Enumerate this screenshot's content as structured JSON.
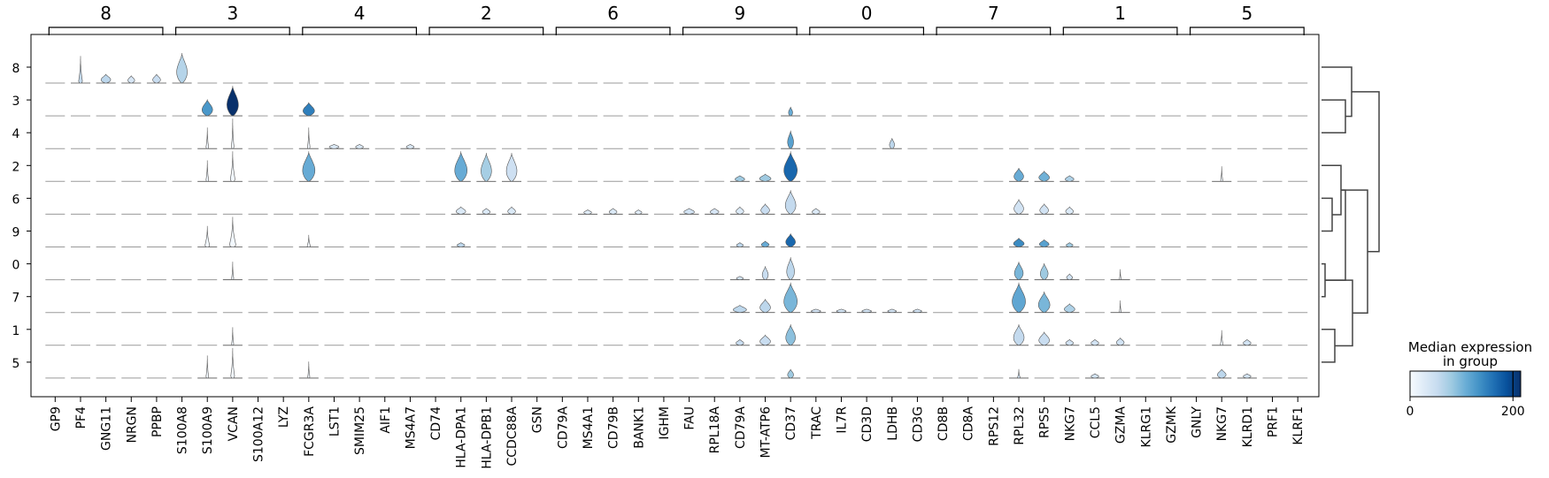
{
  "chart_data": {
    "type": "stacked-violin",
    "groups": [
      {
        "label": "8",
        "genes": [
          "GP9",
          "PF4",
          "GNG11",
          "NRGN",
          "PPBP"
        ]
      },
      {
        "label": "3",
        "genes": [
          "S100A8",
          "S100A9",
          "VCAN",
          "S100A12",
          "LYZ"
        ]
      },
      {
        "label": "4",
        "genes": [
          "FCGR3A",
          "LST1",
          "SMIM25",
          "AIF1",
          "MS4A7"
        ]
      },
      {
        "label": "2",
        "genes": [
          "CD74",
          "HLA-DPA1",
          "HLA-DPB1",
          "CCDC88A",
          "GSN"
        ]
      },
      {
        "label": "6",
        "genes": [
          "CD79A",
          "MS4A1",
          "CD79B",
          "BANK1",
          "IGHM"
        ]
      },
      {
        "label": "9",
        "genes": [
          "FAU",
          "RPL18A",
          "CD79A",
          "MT-ATP6",
          "CD37"
        ]
      },
      {
        "label": "0",
        "genes": [
          "TRAC",
          "IL7R",
          "CD3D",
          "LDHB",
          "CD3G"
        ]
      },
      {
        "label": "7",
        "genes": [
          "CD8B",
          "CD8A",
          "RPS12",
          "RPL32",
          "RPS5"
        ]
      },
      {
        "label": "1",
        "genes": [
          "NKG7",
          "CCL5",
          "GZMA",
          "KLRG1",
          "GZMK"
        ]
      },
      {
        "label": "5",
        "genes": [
          "GNLY",
          "NKG7",
          "KLRD1",
          "PRF1",
          "KLRF1"
        ]
      }
    ],
    "rows": [
      "8",
      "3",
      "4",
      "2",
      "6",
      "9",
      "0",
      "7",
      "1",
      "5"
    ],
    "violins": [
      {
        "row": "8",
        "gene": 1,
        "shape": "spike",
        "height": 0.9,
        "width": 0.18,
        "median": 55
      },
      {
        "row": "8",
        "gene": 2,
        "shape": "blob",
        "height": 0.3,
        "width": 0.5,
        "median": 60
      },
      {
        "row": "8",
        "gene": 3,
        "shape": "blob",
        "height": 0.25,
        "width": 0.35,
        "median": 35
      },
      {
        "row": "8",
        "gene": 4,
        "shape": "blob",
        "height": 0.3,
        "width": 0.4,
        "median": 50
      },
      {
        "row": "8",
        "gene": 5,
        "shape": "blob",
        "height": 1.0,
        "width": 0.55,
        "median": 65
      },
      {
        "row": "3",
        "gene": 6,
        "shape": "blob",
        "height": 0.55,
        "width": 0.55,
        "median": 130
      },
      {
        "row": "3",
        "gene": 7,
        "shape": "blob",
        "height": 1.0,
        "width": 0.6,
        "median": 215
      },
      {
        "row": "3",
        "gene": 10,
        "shape": "blob",
        "height": 0.45,
        "width": 0.6,
        "median": 150
      },
      {
        "row": "3",
        "gene": 29,
        "shape": "blob",
        "height": 0.3,
        "width": 0.2,
        "median": 110
      },
      {
        "row": "4",
        "gene": 6,
        "shape": "spike",
        "height": 0.7,
        "width": 0.12,
        "median": 5
      },
      {
        "row": "4",
        "gene": 7,
        "shape": "spike",
        "height": 1.0,
        "width": 0.12,
        "median": 5
      },
      {
        "row": "4",
        "gene": 10,
        "shape": "spike",
        "height": 0.7,
        "width": 0.12,
        "median": 5
      },
      {
        "row": "4",
        "gene": 11,
        "shape": "blob",
        "height": 0.15,
        "width": 0.5,
        "median": 30
      },
      {
        "row": "4",
        "gene": 12,
        "shape": "blob",
        "height": 0.15,
        "width": 0.4,
        "median": 30
      },
      {
        "row": "4",
        "gene": 14,
        "shape": "blob",
        "height": 0.15,
        "width": 0.4,
        "median": 30
      },
      {
        "row": "4",
        "gene": 29,
        "shape": "blob",
        "height": 0.6,
        "width": 0.3,
        "median": 120
      },
      {
        "row": "4",
        "gene": 33,
        "shape": "blob",
        "height": 0.35,
        "width": 0.25,
        "median": 60
      },
      {
        "row": "2",
        "gene": 6,
        "shape": "spike",
        "height": 0.7,
        "width": 0.12,
        "median": 5
      },
      {
        "row": "2",
        "gene": 7,
        "shape": "spike",
        "height": 1.0,
        "width": 0.22,
        "median": 5
      },
      {
        "row": "2",
        "gene": 10,
        "shape": "blob",
        "height": 1.0,
        "width": 0.65,
        "median": 110
      },
      {
        "row": "2",
        "gene": 16,
        "shape": "blob",
        "height": 1.0,
        "width": 0.65,
        "median": 110
      },
      {
        "row": "2",
        "gene": 17,
        "shape": "blob",
        "height": 0.95,
        "width": 0.55,
        "median": 75
      },
      {
        "row": "2",
        "gene": 18,
        "shape": "blob",
        "height": 0.95,
        "width": 0.55,
        "median": 45
      },
      {
        "row": "2",
        "gene": 27,
        "shape": "blob",
        "height": 0.2,
        "width": 0.5,
        "median": 80
      },
      {
        "row": "2",
        "gene": 28,
        "shape": "blob",
        "height": 0.25,
        "width": 0.6,
        "median": 80
      },
      {
        "row": "2",
        "gene": 29,
        "shape": "blob",
        "height": 1.0,
        "width": 0.7,
        "median": 170
      },
      {
        "row": "2",
        "gene": 38,
        "shape": "blob",
        "height": 0.45,
        "width": 0.5,
        "median": 110
      },
      {
        "row": "2",
        "gene": 39,
        "shape": "blob",
        "height": 0.35,
        "width": 0.55,
        "median": 105
      },
      {
        "row": "2",
        "gene": 40,
        "shape": "blob",
        "height": 0.2,
        "width": 0.45,
        "median": 70
      },
      {
        "row": "2",
        "gene": 46,
        "shape": "spike",
        "height": 0.5,
        "width": 0.1,
        "median": 5
      },
      {
        "row": "6",
        "gene": 16,
        "shape": "blob",
        "height": 0.25,
        "width": 0.5,
        "median": 30
      },
      {
        "row": "6",
        "gene": 17,
        "shape": "blob",
        "height": 0.2,
        "width": 0.4,
        "median": 30
      },
      {
        "row": "6",
        "gene": 18,
        "shape": "blob",
        "height": 0.25,
        "width": 0.4,
        "median": 30
      },
      {
        "row": "6",
        "gene": 21,
        "shape": "blob",
        "height": 0.15,
        "width": 0.4,
        "median": 25
      },
      {
        "row": "6",
        "gene": 22,
        "shape": "blob",
        "height": 0.2,
        "width": 0.4,
        "median": 30
      },
      {
        "row": "6",
        "gene": 23,
        "shape": "blob",
        "height": 0.15,
        "width": 0.35,
        "median": 25
      },
      {
        "row": "6",
        "gene": 25,
        "shape": "blob",
        "height": 0.2,
        "width": 0.55,
        "median": 40
      },
      {
        "row": "6",
        "gene": 26,
        "shape": "blob",
        "height": 0.2,
        "width": 0.45,
        "median": 35
      },
      {
        "row": "6",
        "gene": 27,
        "shape": "blob",
        "height": 0.25,
        "width": 0.4,
        "median": 30
      },
      {
        "row": "6",
        "gene": 28,
        "shape": "blob",
        "height": 0.35,
        "width": 0.45,
        "median": 50
      },
      {
        "row": "6",
        "gene": 29,
        "shape": "blob",
        "height": 0.8,
        "width": 0.55,
        "median": 55
      },
      {
        "row": "6",
        "gene": 30,
        "shape": "blob",
        "height": 0.2,
        "width": 0.4,
        "median": 30
      },
      {
        "row": "6",
        "gene": 38,
        "shape": "blob",
        "height": 0.5,
        "width": 0.5,
        "median": 40
      },
      {
        "row": "6",
        "gene": 39,
        "shape": "blob",
        "height": 0.35,
        "width": 0.45,
        "median": 40
      },
      {
        "row": "6",
        "gene": 40,
        "shape": "blob",
        "height": 0.25,
        "width": 0.4,
        "median": 30
      },
      {
        "row": "9",
        "gene": 6,
        "shape": "spike",
        "height": 0.7,
        "width": 0.22,
        "median": 5
      },
      {
        "row": "9",
        "gene": 7,
        "shape": "spike",
        "height": 1.0,
        "width": 0.3,
        "median": 5
      },
      {
        "row": "9",
        "gene": 10,
        "shape": "spike",
        "height": 0.4,
        "width": 0.15,
        "median": 5
      },
      {
        "row": "9",
        "gene": 16,
        "shape": "blob",
        "height": 0.15,
        "width": 0.4,
        "median": 60
      },
      {
        "row": "9",
        "gene": 27,
        "shape": "blob",
        "height": 0.15,
        "width": 0.35,
        "median": 60
      },
      {
        "row": "9",
        "gene": 28,
        "shape": "blob",
        "height": 0.2,
        "width": 0.4,
        "median": 110
      },
      {
        "row": "9",
        "gene": 29,
        "shape": "blob",
        "height": 0.45,
        "width": 0.5,
        "median": 170
      },
      {
        "row": "9",
        "gene": 38,
        "shape": "blob",
        "height": 0.3,
        "width": 0.55,
        "median": 140
      },
      {
        "row": "9",
        "gene": 39,
        "shape": "blob",
        "height": 0.25,
        "width": 0.5,
        "median": 120
      },
      {
        "row": "9",
        "gene": 40,
        "shape": "blob",
        "height": 0.15,
        "width": 0.35,
        "median": 80
      },
      {
        "row": "0",
        "gene": 7,
        "shape": "spike",
        "height": 0.6,
        "width": 0.1,
        "median": 5
      },
      {
        "row": "0",
        "gene": 27,
        "shape": "blob",
        "height": 0.12,
        "width": 0.35,
        "median": 40
      },
      {
        "row": "0",
        "gene": 28,
        "shape": "blob",
        "height": 0.45,
        "width": 0.3,
        "median": 50
      },
      {
        "row": "0",
        "gene": 29,
        "shape": "blob",
        "height": 0.75,
        "width": 0.4,
        "median": 60
      },
      {
        "row": "0",
        "gene": 38,
        "shape": "blob",
        "height": 0.6,
        "width": 0.45,
        "median": 100
      },
      {
        "row": "0",
        "gene": 39,
        "shape": "blob",
        "height": 0.55,
        "width": 0.4,
        "median": 80
      },
      {
        "row": "0",
        "gene": 40,
        "shape": "blob",
        "height": 0.2,
        "width": 0.3,
        "median": 40
      },
      {
        "row": "0",
        "gene": 42,
        "shape": "spike",
        "height": 0.35,
        "width": 0.08,
        "median": 5
      },
      {
        "row": "7",
        "gene": 27,
        "shape": "blob",
        "height": 0.25,
        "width": 0.7,
        "median": 60
      },
      {
        "row": "7",
        "gene": 28,
        "shape": "blob",
        "height": 0.45,
        "width": 0.55,
        "median": 60
      },
      {
        "row": "7",
        "gene": 29,
        "shape": "blob",
        "height": 1.0,
        "width": 0.7,
        "median": 100
      },
      {
        "row": "7",
        "gene": 30,
        "shape": "blob",
        "height": 0.12,
        "width": 0.5,
        "median": 40
      },
      {
        "row": "7",
        "gene": 31,
        "shape": "blob",
        "height": 0.12,
        "width": 0.5,
        "median": 40
      },
      {
        "row": "7",
        "gene": 32,
        "shape": "blob",
        "height": 0.12,
        "width": 0.5,
        "median": 40
      },
      {
        "row": "7",
        "gene": 33,
        "shape": "blob",
        "height": 0.12,
        "width": 0.45,
        "median": 40
      },
      {
        "row": "7",
        "gene": 34,
        "shape": "blob",
        "height": 0.12,
        "width": 0.45,
        "median": 40
      },
      {
        "row": "7",
        "gene": 38,
        "shape": "blob",
        "height": 1.0,
        "width": 0.7,
        "median": 115
      },
      {
        "row": "7",
        "gene": 39,
        "shape": "blob",
        "height": 0.7,
        "width": 0.6,
        "median": 100
      },
      {
        "row": "7",
        "gene": 40,
        "shape": "blob",
        "height": 0.3,
        "width": 0.55,
        "median": 70
      },
      {
        "row": "7",
        "gene": 42,
        "shape": "spike",
        "height": 0.4,
        "width": 0.08,
        "median": 5
      },
      {
        "row": "1",
        "gene": 7,
        "shape": "spike",
        "height": 0.6,
        "width": 0.1,
        "median": 5
      },
      {
        "row": "1",
        "gene": 27,
        "shape": "blob",
        "height": 0.2,
        "width": 0.4,
        "median": 50
      },
      {
        "row": "1",
        "gene": 28,
        "shape": "blob",
        "height": 0.35,
        "width": 0.55,
        "median": 50
      },
      {
        "row": "1",
        "gene": 29,
        "shape": "blob",
        "height": 0.7,
        "width": 0.5,
        "median": 90
      },
      {
        "row": "1",
        "gene": 38,
        "shape": "blob",
        "height": 0.7,
        "width": 0.55,
        "median": 55
      },
      {
        "row": "1",
        "gene": 39,
        "shape": "blob",
        "height": 0.45,
        "width": 0.55,
        "median": 50
      },
      {
        "row": "1",
        "gene": 40,
        "shape": "blob",
        "height": 0.2,
        "width": 0.4,
        "median": 40
      },
      {
        "row": "1",
        "gene": 41,
        "shape": "blob",
        "height": 0.2,
        "width": 0.4,
        "median": 40
      },
      {
        "row": "1",
        "gene": 42,
        "shape": "blob",
        "height": 0.25,
        "width": 0.4,
        "median": 40
      },
      {
        "row": "1",
        "gene": 46,
        "shape": "spike",
        "height": 0.5,
        "width": 0.12,
        "median": 5
      },
      {
        "row": "1",
        "gene": 47,
        "shape": "blob",
        "height": 0.2,
        "width": 0.4,
        "median": 40
      },
      {
        "row": "5",
        "gene": 6,
        "shape": "spike",
        "height": 0.75,
        "width": 0.12,
        "median": 5
      },
      {
        "row": "5",
        "gene": 7,
        "shape": "spike",
        "height": 1.0,
        "width": 0.18,
        "median": 5
      },
      {
        "row": "5",
        "gene": 10,
        "shape": "spike",
        "height": 0.55,
        "width": 0.1,
        "median": 5
      },
      {
        "row": "5",
        "gene": 29,
        "shape": "blob",
        "height": 0.3,
        "width": 0.3,
        "median": 80
      },
      {
        "row": "5",
        "gene": 38,
        "shape": "spike",
        "height": 0.3,
        "width": 0.12,
        "median": 40
      },
      {
        "row": "5",
        "gene": 41,
        "shape": "blob",
        "height": 0.15,
        "width": 0.4,
        "median": 40
      },
      {
        "row": "5",
        "gene": 46,
        "shape": "blob",
        "height": 0.3,
        "width": 0.45,
        "median": 60
      },
      {
        "row": "5",
        "gene": 47,
        "shape": "blob",
        "height": 0.15,
        "width": 0.4,
        "median": 40
      }
    ],
    "colorbar": {
      "title_line1": "Median expression",
      "title_line2": "in group",
      "min": 0,
      "max": 215,
      "ticks": [
        "0",
        "200"
      ],
      "tick_values": [
        0,
        200
      ],
      "colormap": "Blues",
      "color_low": "#f7fbff",
      "color_high": "#08306b"
    },
    "dendrogram_orientation": "right"
  }
}
